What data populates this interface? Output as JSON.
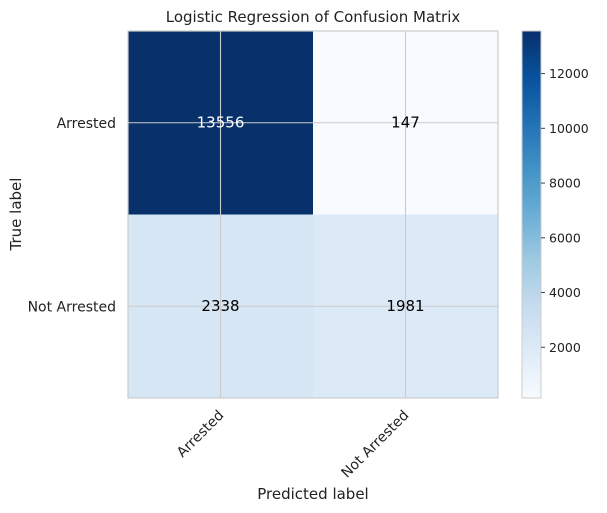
{
  "chart_data": {
    "type": "heatmap",
    "title": "Logistic Regression of Confusion Matrix",
    "xlabel": "Predicted label",
    "ylabel": "True label",
    "x_categories": [
      "Arrested",
      "Not Arrested"
    ],
    "y_categories": [
      "Arrested",
      "Not Arrested"
    ],
    "values": [
      [
        13556,
        147
      ],
      [
        2338,
        1981
      ]
    ],
    "colormap": "Blues",
    "color_range": [
      147,
      13556
    ],
    "colorbar_ticks": [
      2000,
      4000,
      6000,
      8000,
      10000,
      12000
    ],
    "grid": true,
    "colors": {
      "dark": "#08306b",
      "light": "#f7fbff",
      "cell_text_on_dark": "#ffffff",
      "cell_text_on_light": "#000000",
      "grid": "#cccccc"
    }
  }
}
